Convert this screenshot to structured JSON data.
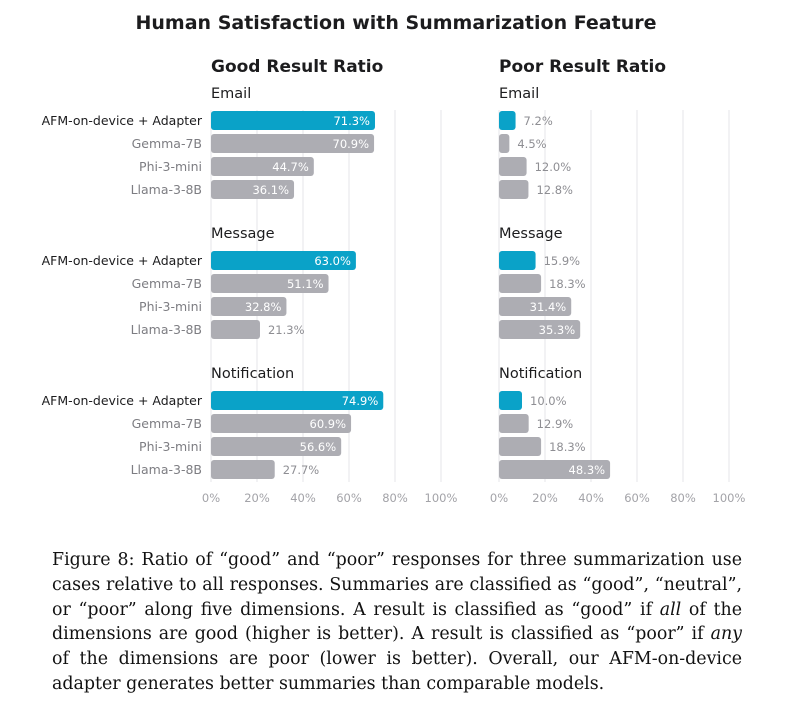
{
  "chart_data": {
    "type": "bar",
    "title": "Human Satisfaction with Summarization Feature",
    "categories": [
      "AFM-on-device + Adapter",
      "Gemma-7B",
      "Phi-3-mini",
      "Llama-3-8B"
    ],
    "xlim": [
      0,
      100
    ],
    "x_ticks": [
      "0%",
      "20%",
      "40%",
      "60%",
      "80%",
      "100%"
    ],
    "grid": true,
    "colors": {
      "highlight": "#0aa2c8",
      "other": "#adadb3",
      "grid": "#e6e6e8",
      "label_inside": "#ffffff",
      "label_outside": "#8e8e93"
    },
    "panels": [
      {
        "heading": "Good Result Ratio",
        "groups": [
          {
            "name": "Email",
            "values": [
              71.3,
              70.9,
              44.7,
              36.1
            ],
            "labels": [
              "71.3%",
              "70.9%",
              "44.7%",
              "36.1%"
            ]
          },
          {
            "name": "Message",
            "values": [
              63.0,
              51.1,
              32.8,
              21.3
            ],
            "labels": [
              "63.0%",
              "51.1%",
              "32.8%",
              "21.3%"
            ]
          },
          {
            "name": "Notification",
            "values": [
              74.9,
              60.9,
              56.6,
              27.7
            ],
            "labels": [
              "74.9%",
              "60.9%",
              "56.6%",
              "27.7%"
            ]
          }
        ]
      },
      {
        "heading": "Poor Result Ratio",
        "groups": [
          {
            "name": "Email",
            "values": [
              7.2,
              4.5,
              12.0,
              12.8
            ],
            "labels": [
              "7.2%",
              "4.5%",
              "12.0%",
              "12.8%"
            ]
          },
          {
            "name": "Message",
            "values": [
              15.9,
              18.3,
              31.4,
              35.3
            ],
            "labels": [
              "15.9%",
              "18.3%",
              "31.4%",
              "35.3%"
            ]
          },
          {
            "name": "Notification",
            "values": [
              10.0,
              12.9,
              18.3,
              48.3
            ],
            "labels": [
              "10.0%",
              "12.9%",
              "18.3%",
              "48.3%"
            ]
          }
        ]
      }
    ]
  },
  "caption": {
    "part1": "Figure 8: Ratio of “good” and “poor” responses for three summarization use cases relative to all responses. Summaries are classified as “good”, “neutral”, or “poor” along five dimensions. A result is classified as “good” if ",
    "em1": "all",
    "part2": " of the dimensions are good (higher is better). A result is classified as “poor” if ",
    "em2": "any",
    "part3": " of the dimensions are poor (lower is better). Overall, our AFM-on-device adapter generates better summaries than comparable models."
  }
}
